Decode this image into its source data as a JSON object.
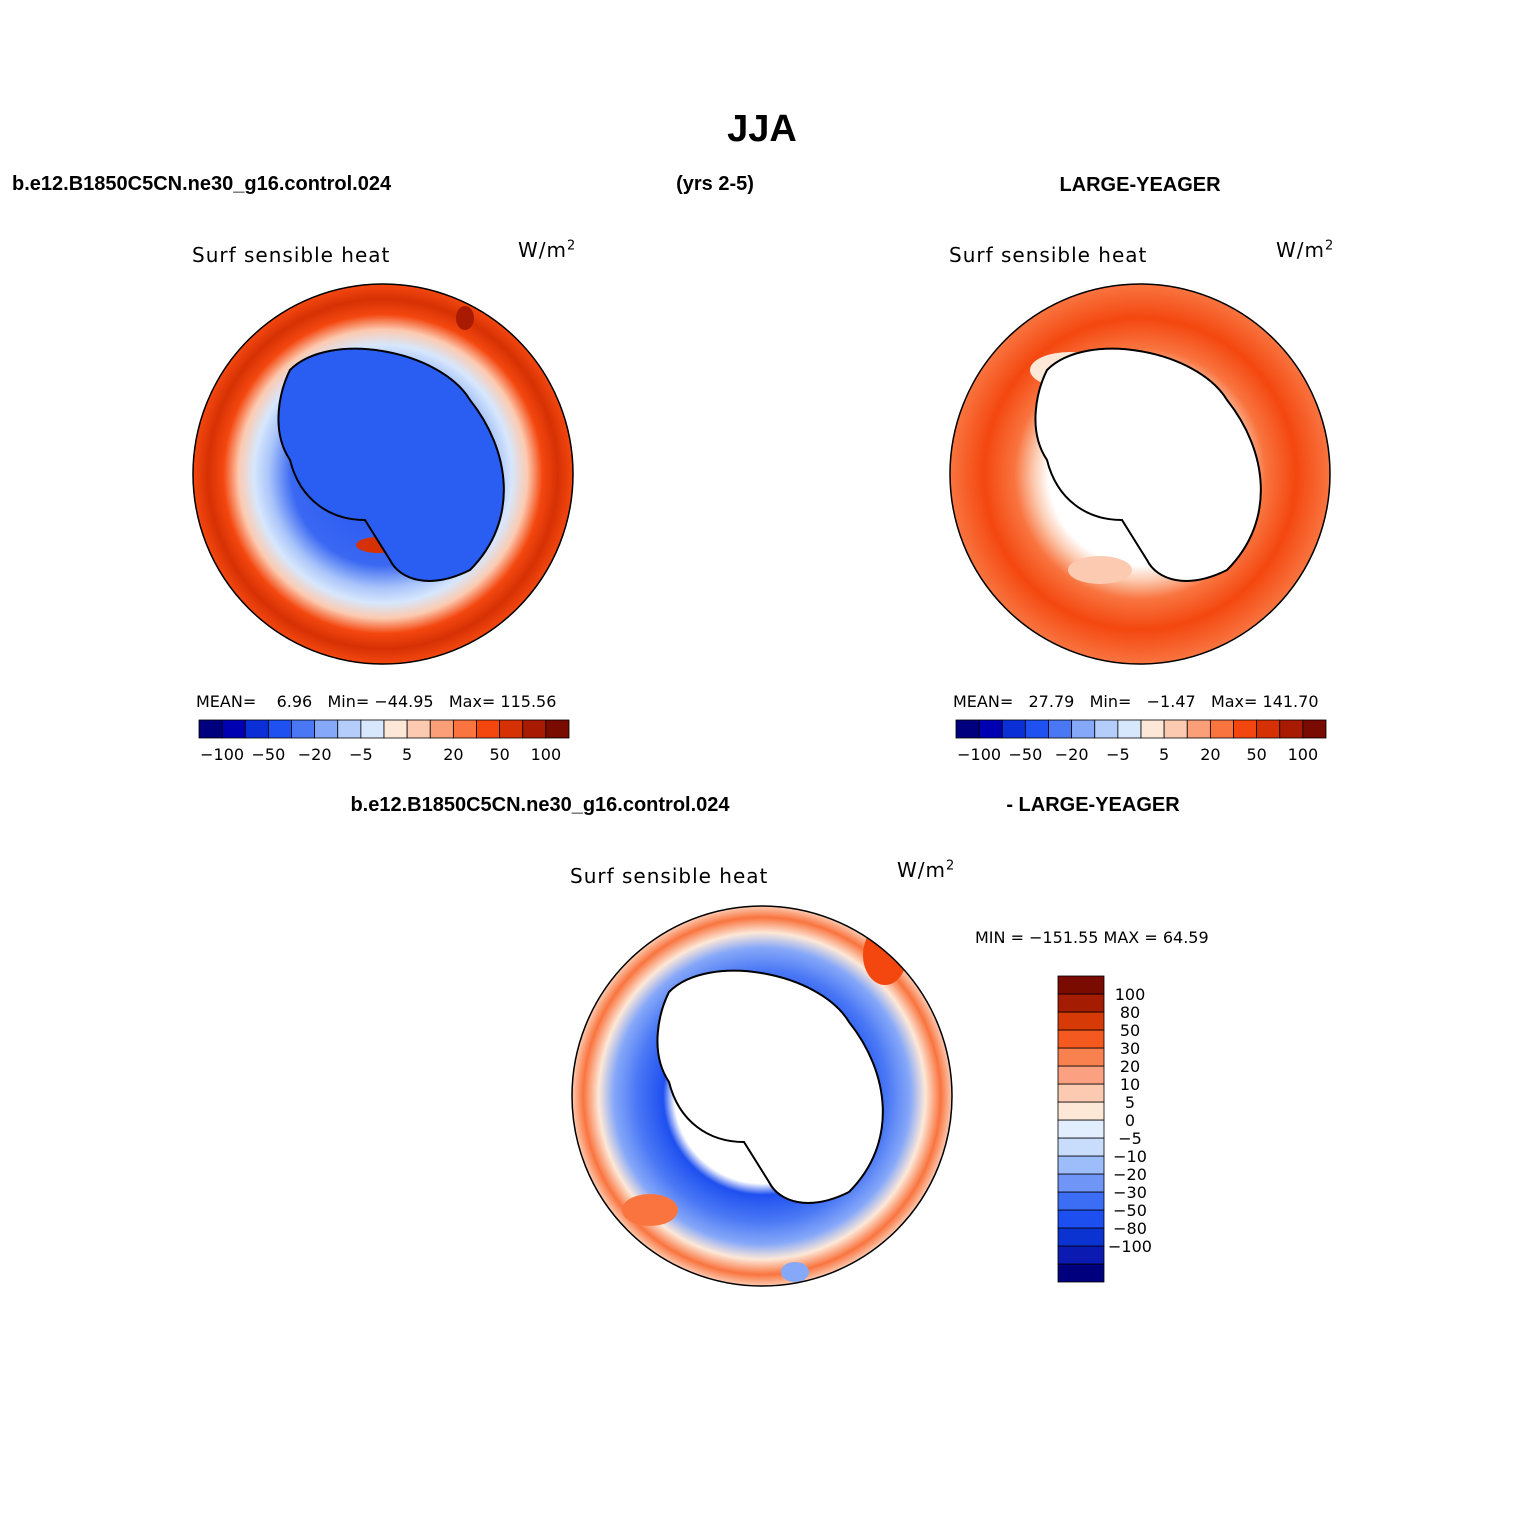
{
  "figure": {
    "title": "JJA",
    "case_label": "b.e12.B1850C5CN.ne30_g16.control.024",
    "years_label": "(yrs 2-5)",
    "ref_label": "LARGE-YEAGER",
    "diff_case_label": "b.e12.B1850C5CN.ne30_g16.control.024",
    "diff_ref_label": "- LARGE-YEAGER"
  },
  "panels": [
    {
      "variable": "Surf sensible heat",
      "units": "W/m",
      "units_exp": "2",
      "stats": {
        "mean_label": "MEAN=",
        "mean": "6.96",
        "min_label": "Min=",
        "min": "−44.95",
        "max_label": "Max=",
        "max": "115.56"
      }
    },
    {
      "variable": "Surf sensible heat",
      "units": "W/m",
      "units_exp": "2",
      "stats": {
        "mean_label": "MEAN=",
        "mean": "27.79",
        "min_label": "Min=",
        "min": "−1.47",
        "max_label": "Max=",
        "max": "141.70"
      }
    },
    {
      "variable": "Surf sensible heat",
      "units": "W/m",
      "units_exp": "2",
      "stats": {
        "text": "MIN = −151.55 MAX =   64.59"
      }
    }
  ],
  "colorbar_h": {
    "colors": [
      "#00007f",
      "#0000b3",
      "#0a2fd6",
      "#1f50f0",
      "#4a78f5",
      "#86a8f9",
      "#b4cdfb",
      "#d7e7fc",
      "#fde8d8",
      "#fccab0",
      "#fb9f78",
      "#f9743f",
      "#f4470f",
      "#d63104",
      "#a81b02",
      "#7a0b01"
    ],
    "labels": [
      "−100",
      "−50",
      "−20",
      "−5",
      "5",
      "20",
      "50",
      "100"
    ]
  },
  "colorbar_v": {
    "colors": [
      "#00007f",
      "#0b1ab0",
      "#0b33d2",
      "#1c4ef0",
      "#3c6df5",
      "#6f96f7",
      "#9dbcfa",
      "#c8dcfc",
      "#e2eefd",
      "#fde8d8",
      "#fccab0",
      "#fba182",
      "#f9804f",
      "#f45a1f",
      "#d63a06",
      "#a41d02",
      "#7a0b01"
    ],
    "labels": [
      "100",
      "80",
      "50",
      "30",
      "20",
      "10",
      "5",
      "0",
      "−5",
      "−10",
      "−20",
      "−30",
      "−50",
      "−80",
      "−100"
    ]
  }
}
